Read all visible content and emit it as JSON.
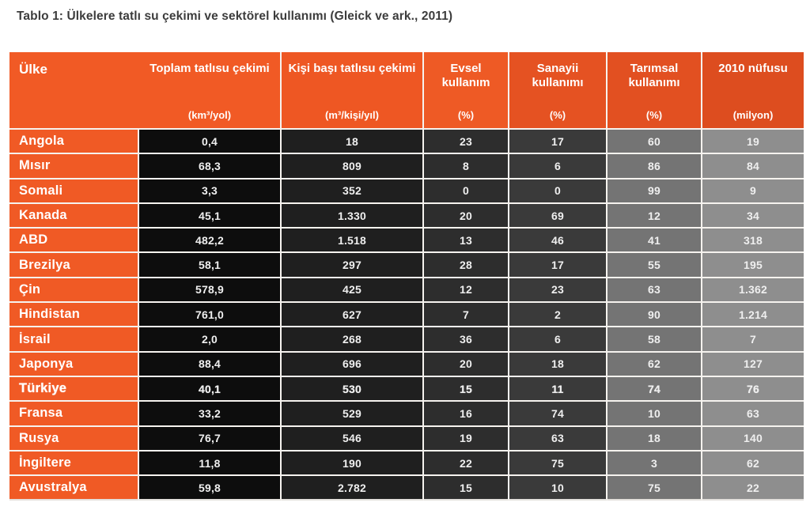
{
  "title": "Tablo 1: Ülkelere tatlı su çekimi ve sektörel kullanımı (Gleick ve ark., 2011)",
  "chart_data": {
    "type": "table",
    "title": "Tablo 1: Ülkelere tatlı su çekimi ve sektörel kullanımı (Gleick ve ark., 2011)",
    "source": "Gleick ve ark., 2011",
    "columns": [
      {
        "title": "Ülke",
        "unit": ""
      },
      {
        "title": "Toplam tatlısu çekimi",
        "unit": "(km³/yol)"
      },
      {
        "title": "Kişi başı tatlısu çekimi",
        "unit": "(m³/kişi/yıl)"
      },
      {
        "title": "Evsel kullanım",
        "unit": "(%)"
      },
      {
        "title": "Sanayii kullanımı",
        "unit": "(%)"
      },
      {
        "title": "Tarımsal kullanımı",
        "unit": "(%)"
      },
      {
        "title": "2010 nüfusu",
        "unit": "(milyon)"
      }
    ],
    "rows": [
      {
        "country": "Angola",
        "values": [
          "0,4",
          "18",
          "23",
          "17",
          "60",
          "19"
        ],
        "bold": false
      },
      {
        "country": "Mısır",
        "values": [
          "68,3",
          "809",
          "8",
          "6",
          "86",
          "84"
        ],
        "bold": false
      },
      {
        "country": "Somali",
        "values": [
          "3,3",
          "352",
          "0",
          "0",
          "99",
          "9"
        ],
        "bold": false
      },
      {
        "country": "Kanada",
        "values": [
          "45,1",
          "1.330",
          "20",
          "69",
          "12",
          "34"
        ],
        "bold": false
      },
      {
        "country": "ABD",
        "values": [
          "482,2",
          "1.518",
          "13",
          "46",
          "41",
          "318"
        ],
        "bold": false
      },
      {
        "country": "Brezilya",
        "values": [
          "58,1",
          "297",
          "28",
          "17",
          "55",
          "195"
        ],
        "bold": false
      },
      {
        "country": "Çin",
        "values": [
          "578,9",
          "425",
          "12",
          "23",
          "63",
          "1.362"
        ],
        "bold": false
      },
      {
        "country": "Hindistan",
        "values": [
          "761,0",
          "627",
          "7",
          "2",
          "90",
          "1.214"
        ],
        "bold": false
      },
      {
        "country": "İsrail",
        "values": [
          "2,0",
          "268",
          "36",
          "6",
          "58",
          "7"
        ],
        "bold": false
      },
      {
        "country": "Japonya",
        "values": [
          "88,4",
          "696",
          "20",
          "18",
          "62",
          "127"
        ],
        "bold": false
      },
      {
        "country": "Türkiye",
        "values": [
          "40,1",
          "530",
          "15",
          "11",
          "74",
          "76"
        ],
        "bold": true
      },
      {
        "country": "Fransa",
        "values": [
          "33,2",
          "529",
          "16",
          "74",
          "10",
          "63"
        ],
        "bold": false
      },
      {
        "country": "Rusya",
        "values": [
          "76,7",
          "546",
          "19",
          "63",
          "18",
          "140"
        ],
        "bold": false
      },
      {
        "country": "İngiltere",
        "values": [
          "11,8",
          "190",
          "22",
          "75",
          "3",
          "62"
        ],
        "bold": false
      },
      {
        "country": "Avustralya",
        "values": [
          "59,8",
          "2.782",
          "15",
          "10",
          "75",
          "22"
        ],
        "bold": false
      }
    ],
    "highlighted_row": "Türkiye",
    "layout": {
      "grid": "on",
      "header_position": "top"
    }
  },
  "colors": {
    "accent_orange": "#f05a25",
    "column_backgrounds": [
      "#f05a25",
      "#0d0d0d",
      "#1f1f1f",
      "#2d2d2d",
      "#3a3a3a",
      "#747474",
      "#8e8e8e"
    ],
    "header_backgrounds": [
      "#f15a25",
      "#ee5723",
      "#ee5a25",
      "#e55222",
      "#e25021",
      "#dd4d1f"
    ],
    "grid_line": "#f6f3ef",
    "title_text": "#3c3c3c",
    "cell_text": "#efefef"
  }
}
